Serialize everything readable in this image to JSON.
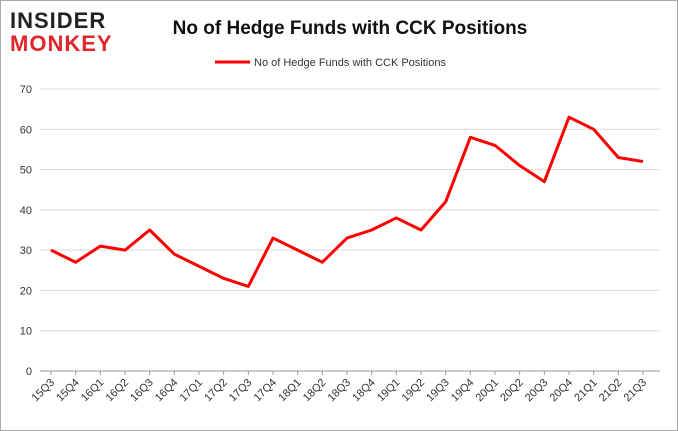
{
  "logo": {
    "line1": "INSIDER",
    "line2": "MONKEY"
  },
  "chart_data": {
    "type": "line",
    "title": "No of Hedge Funds with CCK Positions",
    "categories": [
      "15Q3",
      "15Q4",
      "16Q1",
      "16Q2",
      "16Q3",
      "16Q4",
      "17Q1",
      "17Q2",
      "17Q3",
      "17Q4",
      "18Q1",
      "18Q2",
      "18Q3",
      "18Q4",
      "19Q1",
      "19Q2",
      "19Q3",
      "19Q4",
      "20Q1",
      "20Q2",
      "20Q3",
      "20Q4",
      "21Q1",
      "21Q2",
      "21Q3"
    ],
    "series": [
      {
        "name": "No of Hedge Funds with CCK Positions",
        "color": "#ff0000",
        "values": [
          30,
          27,
          31,
          30,
          35,
          29,
          26,
          23,
          21,
          33,
          30,
          27,
          33,
          35,
          38,
          35,
          42,
          58,
          56,
          51,
          47,
          63,
          60,
          53,
          52
        ]
      }
    ],
    "ylim": [
      0,
      70
    ],
    "yticks": [
      0,
      10,
      20,
      30,
      40,
      50,
      60,
      70
    ],
    "grid": true,
    "legend": "top"
  }
}
